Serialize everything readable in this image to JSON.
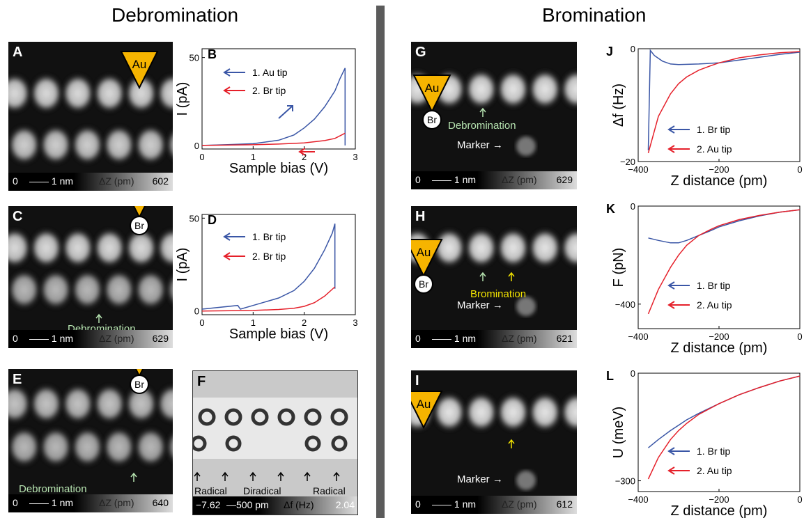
{
  "sections": {
    "left": "Debromination",
    "right": "Bromination"
  },
  "panels": {
    "A": {
      "label": "A",
      "tip": "Au",
      "ann": "Debromination",
      "bar_min": "0",
      "bar_scale": "1 nm",
      "bar_unit": "ΔZ (pm)",
      "bar_max": "602"
    },
    "C": {
      "label": "C",
      "tip": "Au",
      "tip2": "Br",
      "ann": "Debromination",
      "bar_min": "0",
      "bar_scale": "1 nm",
      "bar_unit": "ΔZ (pm)",
      "bar_max": "629"
    },
    "E": {
      "label": "E",
      "tip": "Au",
      "tip2": "Br",
      "ann": "Debromination",
      "bar_min": "0",
      "bar_scale": "1 nm",
      "bar_unit": "ΔZ (pm)",
      "bar_max": "640"
    },
    "F": {
      "label": "F",
      "labels": [
        "Radical",
        "Diradical",
        "Radical"
      ],
      "bar_min": "−7.62",
      "bar_scale": "500 pm",
      "bar_unit": "Δf (Hz)",
      "bar_max": "2.04"
    },
    "G": {
      "label": "G",
      "tip": "Au",
      "tip2": "Br",
      "ann": "Debromination",
      "marker": "Marker",
      "bar_min": "0",
      "bar_scale": "1 nm",
      "bar_unit": "ΔZ (pm)",
      "bar_max": "629"
    },
    "H": {
      "label": "H",
      "tip": "Au",
      "tip2": "Br",
      "ann": "Bromination",
      "marker": "Marker",
      "bar_min": "0",
      "bar_scale": "1 nm",
      "bar_unit": "ΔZ (pm)",
      "bar_max": "621"
    },
    "I": {
      "label": "I",
      "tip": "Au",
      "marker": "Marker",
      "bar_min": "0",
      "bar_scale": "1 nm",
      "bar_unit": "ΔZ (pm)",
      "bar_max": "612"
    }
  },
  "colors": {
    "blue": "#3a56a6",
    "red": "#e5202a",
    "tip": "#f6b400",
    "green_ann": "#b6e3b0",
    "yellow_ann": "#f2e300"
  },
  "chart_data": [
    {
      "panel": "B",
      "type": "line",
      "xlabel": "Sample bias (V)",
      "ylabel": "I (pA)",
      "xlim": [
        0,
        3
      ],
      "ylim": [
        -2,
        55
      ],
      "xticks": [
        "0",
        "1",
        "2",
        "3"
      ],
      "yticks": [
        "0",
        "50"
      ],
      "series": [
        {
          "name": "1. Au tip",
          "color": "#3a56a6",
          "x": [
            0,
            0.5,
            1.0,
            1.5,
            1.8,
            2.0,
            2.2,
            2.4,
            2.6,
            2.7,
            2.8,
            2.8
          ],
          "y": [
            0,
            0.5,
            1,
            3,
            6,
            10,
            15,
            22,
            31,
            38,
            44,
            0
          ]
        },
        {
          "name": "2. Br tip",
          "color": "#e5202a",
          "x": [
            0,
            0.5,
            1.0,
            1.5,
            2.0,
            2.4,
            2.6,
            2.8
          ],
          "y": [
            0,
            0.2,
            0.4,
            0.8,
            1.5,
            2.8,
            4,
            7
          ]
        }
      ]
    },
    {
      "panel": "D",
      "type": "line",
      "xlabel": "Sample bias (V)",
      "ylabel": "I (pA)",
      "xlim": [
        0,
        3
      ],
      "ylim": [
        -2,
        52
      ],
      "xticks": [
        "0",
        "1",
        "2",
        "3"
      ],
      "yticks": [
        "0",
        "50"
      ],
      "series": [
        {
          "name": "1. Br tip",
          "color": "#3a56a6",
          "x": [
            0,
            0.7,
            0.75,
            1.0,
            1.5,
            1.8,
            2.0,
            2.2,
            2.4,
            2.55,
            2.6,
            2.6
          ],
          "y": [
            1,
            3,
            1,
            3,
            7,
            11,
            16,
            23,
            33,
            42,
            47,
            12
          ]
        },
        {
          "name": "2. Br tip",
          "color": "#e5202a",
          "x": [
            0,
            1.0,
            1.5,
            1.8,
            2.0,
            2.2,
            2.4,
            2.6
          ],
          "y": [
            0,
            0.3,
            0.8,
            1.5,
            2.5,
            4.5,
            8,
            13
          ]
        }
      ]
    },
    {
      "panel": "J",
      "type": "line",
      "xlabel": "Z distance (pm)",
      "ylabel": "Δf (Hz)",
      "xlim": [
        -400,
        0
      ],
      "ylim": [
        -20,
        0
      ],
      "xticks": [
        "−400",
        "−200",
        "0"
      ],
      "yticks": [
        "0",
        "−20"
      ],
      "series": [
        {
          "name": "1. Br tip",
          "color": "#3a56a6",
          "x": [
            -375,
            -370,
            -360,
            -340,
            -320,
            -300,
            -250,
            -200,
            -150,
            -100,
            -50,
            0
          ],
          "y": [
            -18,
            -0.3,
            -1.2,
            -2.2,
            -2.7,
            -2.8,
            -2.7,
            -2.5,
            -2.0,
            -1.5,
            -1.0,
            -0.6
          ]
        },
        {
          "name": "2. Au tip",
          "color": "#e5202a",
          "x": [
            -375,
            -350,
            -320,
            -300,
            -280,
            -250,
            -220,
            -200,
            -150,
            -100,
            -50,
            0
          ],
          "y": [
            -18.5,
            -12,
            -8,
            -6.2,
            -5,
            -3.8,
            -3,
            -2.5,
            -1.6,
            -1.1,
            -0.7,
            -0.5
          ]
        }
      ]
    },
    {
      "panel": "K",
      "type": "line",
      "xlabel": "Z distance (pm)",
      "ylabel": "F (pN)",
      "xlim": [
        -400,
        0
      ],
      "ylim": [
        -500,
        0
      ],
      "xticks": [
        "−400",
        "−200",
        "0"
      ],
      "yticks": [
        "0",
        "−400"
      ],
      "series": [
        {
          "name": "1. Br tip",
          "color": "#3a56a6",
          "x": [
            -375,
            -350,
            -320,
            -300,
            -280,
            -250,
            -220,
            -200,
            -150,
            -100,
            -50,
            0
          ],
          "y": [
            -130,
            -140,
            -150,
            -150,
            -140,
            -120,
            -100,
            -85,
            -60,
            -40,
            -25,
            -15
          ]
        },
        {
          "name": "2. Au tip",
          "color": "#e5202a",
          "x": [
            -375,
            -350,
            -320,
            -300,
            -280,
            -250,
            -220,
            -200,
            -150,
            -100,
            -50,
            0
          ],
          "y": [
            -440,
            -340,
            -250,
            -200,
            -160,
            -120,
            -95,
            -80,
            -55,
            -38,
            -25,
            -15
          ]
        }
      ]
    },
    {
      "panel": "L",
      "type": "line",
      "xlabel": "Z distance (pm)",
      "ylabel": "U (meV)",
      "xlim": [
        -400,
        0
      ],
      "ylim": [
        -330,
        0
      ],
      "xticks": [
        "−400",
        "−200",
        "0"
      ],
      "yticks": [
        "0",
        "−300"
      ],
      "series": [
        {
          "name": "1. Br tip",
          "color": "#3a56a6",
          "x": [
            -375,
            -350,
            -320,
            -300,
            -280,
            -250,
            -200,
            -150,
            -100,
            -50,
            0
          ],
          "y": [
            -208,
            -185,
            -160,
            -145,
            -130,
            -112,
            -85,
            -60,
            -40,
            -22,
            -8
          ]
        },
        {
          "name": "2. Au tip",
          "color": "#e5202a",
          "x": [
            -375,
            -350,
            -320,
            -300,
            -280,
            -250,
            -200,
            -150,
            -100,
            -50,
            0
          ],
          "y": [
            -295,
            -235,
            -185,
            -160,
            -140,
            -115,
            -85,
            -60,
            -40,
            -22,
            -8
          ]
        }
      ]
    }
  ]
}
